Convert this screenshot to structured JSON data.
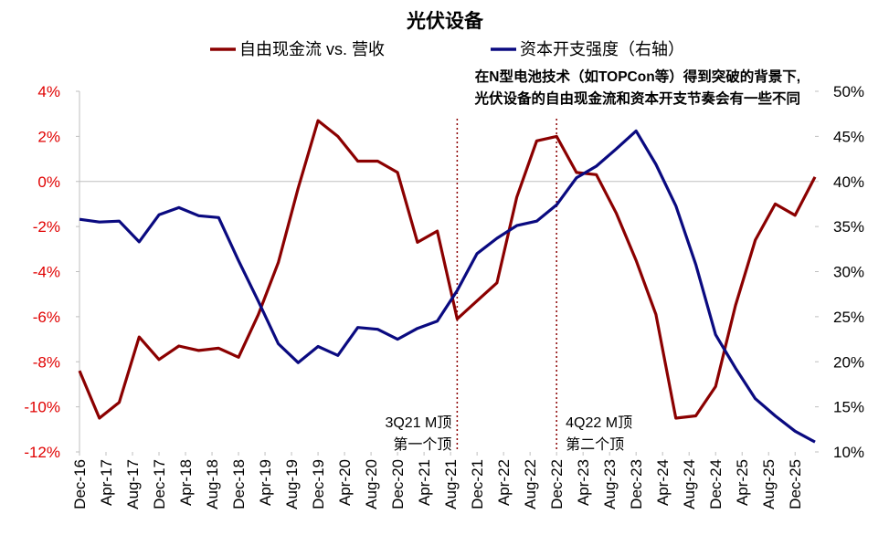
{
  "chart_data": {
    "type": "line",
    "title": "光伏设备",
    "note": [
      "在N型电池技术（如TOPCon等）得到突破的背景下,",
      "光伏设备的自由现金流和资本开支节奏会有一些不同"
    ],
    "x": [
      "2016-12",
      "2017-03",
      "2017-06",
      "2017-09",
      "2017-12",
      "2018-03",
      "2018-06",
      "2018-09",
      "2018-12",
      "2019-03",
      "2019-06",
      "2019-09",
      "2019-12",
      "2020-03",
      "2020-06",
      "2020-09",
      "2020-12",
      "2021-03",
      "2021-06",
      "2021-09",
      "2021-12",
      "2022-03",
      "2022-06",
      "2022-09",
      "2022-12",
      "2023-03",
      "2023-06",
      "2023-09",
      "2023-12",
      "2024-03",
      "2024-06",
      "2024-09",
      "2024-12",
      "2025-03",
      "2025-06",
      "2025-09",
      "2025-12",
      "2026-03"
    ],
    "series": [
      {
        "name": "自由现金流 vs. 营收",
        "color": "#8b0000",
        "axis": "y",
        "values": [
          -8.4,
          -10.5,
          -9.8,
          -6.9,
          -7.9,
          -7.3,
          -7.5,
          -7.4,
          -7.8,
          -5.9,
          -3.6,
          -0.3,
          2.7,
          2.0,
          0.9,
          0.9,
          0.4,
          -2.7,
          -2.2,
          -6.1,
          -5.3,
          -4.5,
          -0.7,
          1.8,
          2.0,
          0.4,
          0.3,
          -1.4,
          -3.5,
          -5.9,
          -10.5,
          -10.4,
          -9.1,
          -5.5,
          -2.6,
          -1.0,
          -1.5,
          0.2
        ]
      },
      {
        "name": "资本开支强度（右轴）",
        "color": "#0a0a80",
        "axis": "y2",
        "values": [
          35.8,
          35.5,
          35.6,
          33.3,
          36.3,
          37.1,
          36.2,
          36.0,
          31.2,
          26.7,
          22.0,
          19.9,
          21.7,
          20.7,
          23.8,
          23.6,
          22.5,
          23.7,
          24.5,
          27.9,
          32.0,
          33.7,
          35.1,
          35.6,
          37.4,
          40.4,
          41.7,
          43.6,
          45.6,
          41.9,
          37.3,
          30.8,
          23.0,
          19.3,
          15.9,
          14.0,
          12.3,
          11.1
        ]
      }
    ],
    "ylim": [
      -12,
      4
    ],
    "yticks": [
      {
        "value": -12,
        "label": "-12%"
      },
      {
        "value": -10,
        "label": "-10%"
      },
      {
        "value": -8,
        "label": "-8%"
      },
      {
        "value": -6,
        "label": "-6%"
      },
      {
        "value": -4,
        "label": "-4%"
      },
      {
        "value": -2,
        "label": "-2%"
      },
      {
        "value": 0,
        "label": "0%"
      },
      {
        "value": 2,
        "label": "2%"
      },
      {
        "value": 4,
        "label": "4%"
      }
    ],
    "y2lim": [
      10,
      50
    ],
    "y2ticks": [
      {
        "value": 10,
        "label": "10%"
      },
      {
        "value": 15,
        "label": "15%"
      },
      {
        "value": 20,
        "label": "20%"
      },
      {
        "value": 25,
        "label": "25%"
      },
      {
        "value": 30,
        "label": "30%"
      },
      {
        "value": 35,
        "label": "35%"
      },
      {
        "value": 40,
        "label": "40%"
      },
      {
        "value": 45,
        "label": "45%"
      },
      {
        "value": 50,
        "label": "50%"
      }
    ],
    "xticks": [
      {
        "value": "2016-12",
        "label": "Dec-16"
      },
      {
        "value": "2017-04",
        "label": "Apr-17"
      },
      {
        "value": "2017-08",
        "label": "Aug-17"
      },
      {
        "value": "2017-12",
        "label": "Dec-17"
      },
      {
        "value": "2018-04",
        "label": "Apr-18"
      },
      {
        "value": "2018-08",
        "label": "Aug-18"
      },
      {
        "value": "2018-12",
        "label": "Dec-18"
      },
      {
        "value": "2019-04",
        "label": "Apr-19"
      },
      {
        "value": "2019-08",
        "label": "Aug-19"
      },
      {
        "value": "2019-12",
        "label": "Dec-19"
      },
      {
        "value": "2020-04",
        "label": "Apr-20"
      },
      {
        "value": "2020-08",
        "label": "Aug-20"
      },
      {
        "value": "2020-12",
        "label": "Dec-20"
      },
      {
        "value": "2021-04",
        "label": "Apr-21"
      },
      {
        "value": "2021-08",
        "label": "Aug-21"
      },
      {
        "value": "2021-12",
        "label": "Dec-21"
      },
      {
        "value": "2022-04",
        "label": "Apr-22"
      },
      {
        "value": "2022-08",
        "label": "Aug-22"
      },
      {
        "value": "2022-12",
        "label": "Dec-22"
      },
      {
        "value": "2023-04",
        "label": "Apr-23"
      },
      {
        "value": "2023-08",
        "label": "Aug-23"
      },
      {
        "value": "2023-12",
        "label": "Dec-23"
      },
      {
        "value": "2024-04",
        "label": "Apr-24"
      },
      {
        "value": "2024-08",
        "label": "Aug-24"
      },
      {
        "value": "2024-12",
        "label": "Dec-24"
      },
      {
        "value": "2025-04",
        "label": "Apr-25"
      },
      {
        "value": "2025-08",
        "label": "Aug-25"
      },
      {
        "value": "2025-12",
        "label": "Dec-25"
      }
    ],
    "annotations": [
      {
        "x": "2021-09",
        "lines": [
          "3Q21 M顶",
          "第一个顶"
        ]
      },
      {
        "x": "2022-12",
        "lines": [
          "4Q22 M顶",
          "第二个顶"
        ]
      }
    ],
    "legend": "top"
  }
}
